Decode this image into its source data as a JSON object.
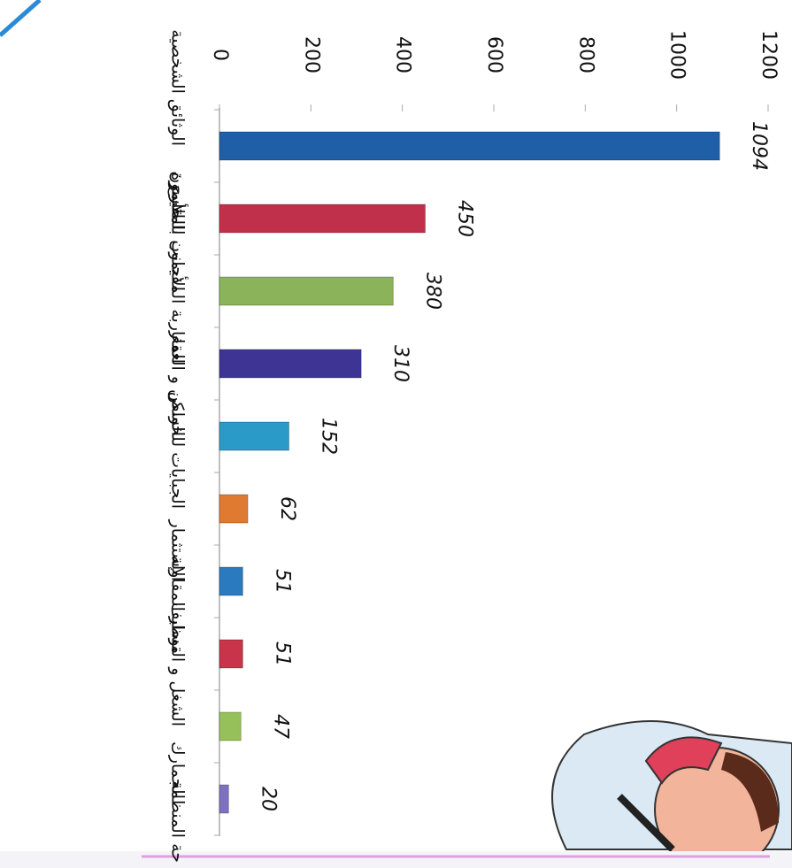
{
  "chart_data": {
    "type": "bar",
    "orientation": "horizontal",
    "categories": [
      "الوثائق الشخصية",
      "الأسرة",
      "الأجانب المقيمون",
      "المغاربة المقيمون بالخارج",
      "السكن و العقار",
      "الجبايات للخواص",
      "الإستثمار",
      "مسار المقاولة",
      "الشغل و التوظيف",
      "الجمارك",
      "حة المنظمة"
    ],
    "values": [
      1094,
      450,
      380,
      310,
      152,
      62,
      51,
      51,
      47,
      20,
      null
    ],
    "colors": [
      "#1f5fa8",
      "#c0304a",
      "#8bb35a",
      "#3d3494",
      "#2a9ac8",
      "#e07a30",
      "#2a7ac0",
      "#c8344a",
      "#96c05a",
      "#8070c0",
      "#999999"
    ],
    "xlim": [
      0,
      1200
    ],
    "xticks": [
      0,
      200,
      400,
      600,
      800,
      1000,
      1200
    ]
  }
}
